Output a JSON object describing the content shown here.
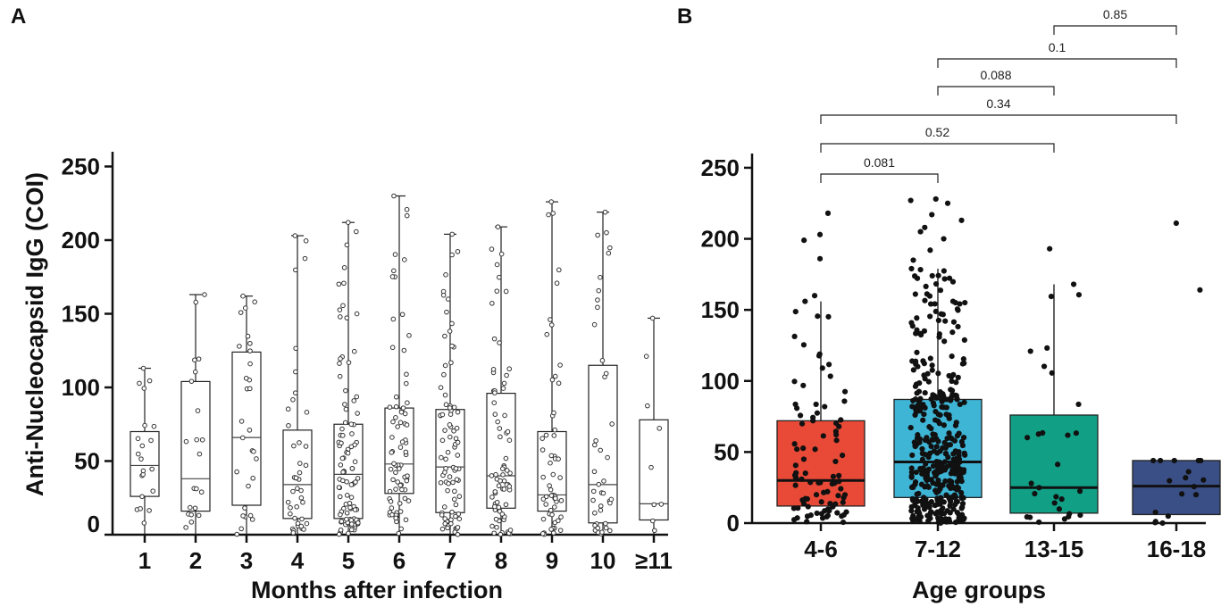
{
  "chart_data": [
    {
      "panel": "A",
      "type": "box",
      "style": "open boxes with whiskers (min-max) and open-circle individual points",
      "ylabel": "Anti-Nucleocapsid IgG (COI)",
      "xlabel": "Months after infection",
      "ylim": [
        0,
        260
      ],
      "yticks": [
        0,
        50,
        100,
        150,
        200,
        250
      ],
      "categories": [
        "1",
        "2",
        "3",
        "4",
        "5",
        "6",
        "7",
        "8",
        "9",
        "10",
        "≥11"
      ],
      "boxes": [
        {
          "min": 0,
          "q1": 26,
          "median": 47,
          "q3": 70,
          "max": 113,
          "n": 20
        },
        {
          "min": 0,
          "q1": 16,
          "median": 38,
          "q3": 104,
          "max": 163,
          "n": 20
        },
        {
          "min": 0,
          "q1": 20,
          "median": 66,
          "q3": 124,
          "max": 162,
          "n": 26
        },
        {
          "min": 0,
          "q1": 11,
          "median": 34,
          "q3": 71,
          "max": 203,
          "n": 40
        },
        {
          "min": 0,
          "q1": 11,
          "median": 41,
          "q3": 75,
          "max": 212,
          "n": 95
        },
        {
          "min": 0,
          "q1": 28,
          "median": 48,
          "q3": 86,
          "max": 230,
          "n": 75
        },
        {
          "min": 0,
          "q1": 15,
          "median": 46,
          "q3": 85,
          "max": 204,
          "n": 85
        },
        {
          "min": 0,
          "q1": 18,
          "median": 40,
          "q3": 96,
          "max": 209,
          "n": 70
        },
        {
          "min": 0,
          "q1": 16,
          "median": 27,
          "q3": 70,
          "max": 226,
          "n": 55
        },
        {
          "min": 0,
          "q1": 8,
          "median": 34,
          "q3": 115,
          "max": 219,
          "n": 40
        },
        {
          "min": 0,
          "q1": 10,
          "median": 21,
          "q3": 78,
          "max": 147,
          "n": 8
        }
      ]
    },
    {
      "panel": "B",
      "type": "box",
      "style": "filled boxes with whiskers and jittered black points; pairwise p-value brackets",
      "ylabel": "",
      "xlabel": "Age groups",
      "ylim": [
        0,
        260
      ],
      "yticks": [
        0,
        50,
        100,
        150,
        200,
        250
      ],
      "categories": [
        "4-6",
        "7-12",
        "13-15",
        "16-18"
      ],
      "boxes": [
        {
          "min": 0,
          "q1": 12,
          "median": 30,
          "q3": 72,
          "max": 156,
          "n": 90,
          "color": "#e84a37",
          "outliers": [
            160,
            186,
            199,
            203,
            218
          ]
        },
        {
          "min": 0,
          "q1": 18,
          "median": 43,
          "q3": 87,
          "max": 179,
          "n": 400,
          "color": "#3fb5d6",
          "outliers": [
            185,
            192,
            200,
            205,
            208,
            213,
            217,
            225,
            227,
            228
          ]
        },
        {
          "min": 0,
          "q1": 7,
          "median": 25,
          "q3": 76,
          "max": 168,
          "n": 28,
          "color": "#11a085",
          "outliers": [
            193
          ]
        },
        {
          "min": 0,
          "q1": 6,
          "median": 26,
          "q3": 44,
          "max": 44,
          "n": 14,
          "color": "#3a4f86",
          "outliers": [
            164,
            211
          ]
        }
      ],
      "comparisons": [
        {
          "groups": [
            "4-6",
            "7-12"
          ],
          "p": "0.081"
        },
        {
          "groups": [
            "4-6",
            "13-15"
          ],
          "p": "0.52"
        },
        {
          "groups": [
            "4-6",
            "16-18"
          ],
          "p": "0.34"
        },
        {
          "groups": [
            "7-12",
            "13-15"
          ],
          "p": "0.088"
        },
        {
          "groups": [
            "7-12",
            "16-18"
          ],
          "p": "0.1"
        },
        {
          "groups": [
            "13-15",
            "16-18"
          ],
          "p": "0.85"
        }
      ]
    }
  ]
}
